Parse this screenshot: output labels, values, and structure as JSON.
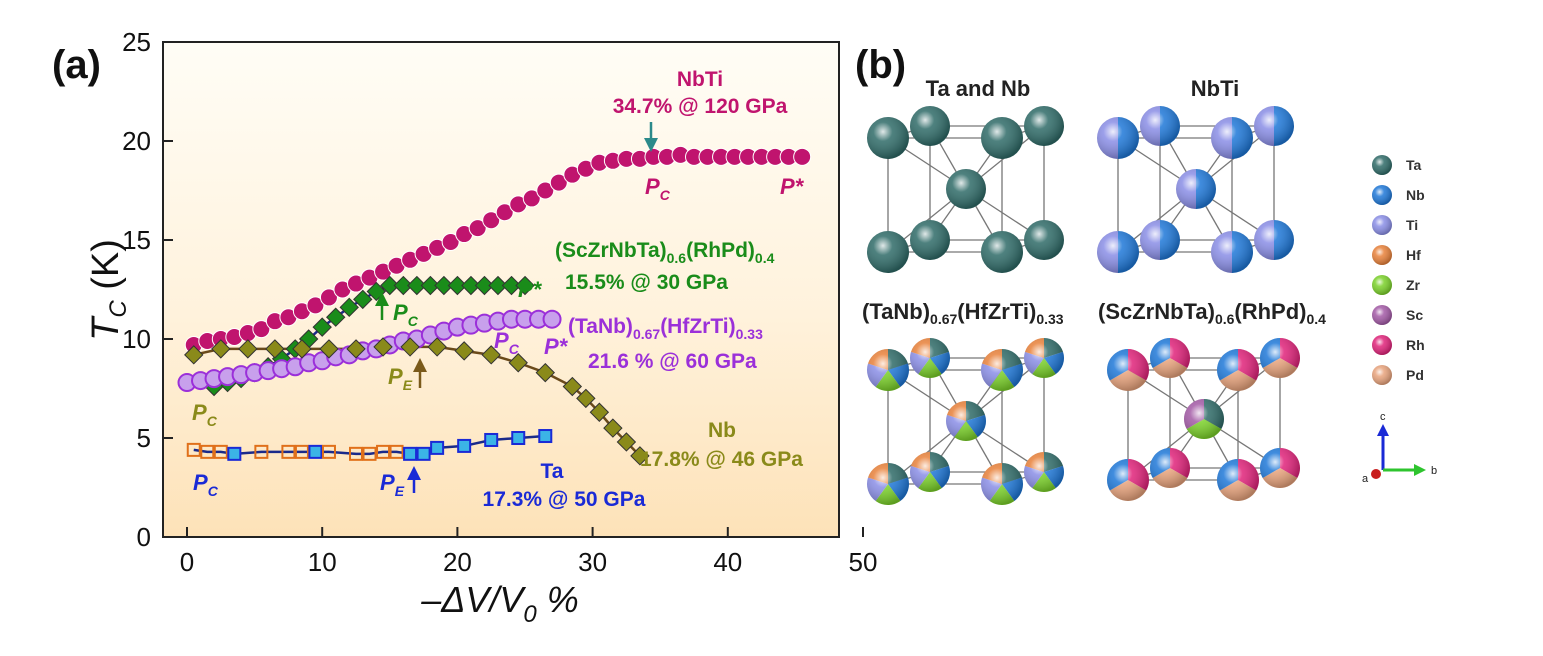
{
  "panel_a": {
    "label": "(a)",
    "chart_data": {
      "type": "scatter",
      "xlabel": "–ΔV/V0 %",
      "ylabel": "TC (K)",
      "xlim": [
        0,
        50
      ],
      "ylim": [
        0,
        25
      ],
      "xticks": [
        "0",
        "10",
        "20",
        "30",
        "40",
        "50"
      ],
      "yticks": [
        "0",
        "5",
        "10",
        "15",
        "20",
        "25"
      ],
      "grid": false,
      "series": [
        {
          "name": "NbTi",
          "note": "34.7% @ 120 GPa",
          "color": "#c0146e",
          "marker": "circle",
          "x": [
            0.5,
            1.5,
            2.5,
            3.5,
            4.5,
            5.5,
            6.5,
            7.5,
            8.5,
            9.5,
            10.5,
            11.5,
            12.5,
            13.5,
            14.5,
            15.5,
            16.5,
            17.5,
            18.5,
            19.5,
            20.5,
            21.5,
            22.5,
            23.5,
            24.5,
            25.5,
            26.5,
            27.5,
            28.5,
            29.5,
            30.5,
            31.5,
            32.5,
            33.5,
            34.5,
            35.5,
            36.5,
            37.5,
            38.5,
            39.5,
            40.5,
            41.5,
            42.5,
            43.5,
            44.5,
            45.5
          ],
          "y": [
            9.7,
            9.9,
            10.0,
            10.1,
            10.3,
            10.5,
            10.9,
            11.1,
            11.4,
            11.7,
            12.1,
            12.5,
            12.8,
            13.1,
            13.4,
            13.7,
            14.0,
            14.3,
            14.6,
            14.9,
            15.3,
            15.6,
            16.0,
            16.4,
            16.8,
            17.1,
            17.5,
            17.9,
            18.3,
            18.6,
            18.9,
            19.0,
            19.1,
            19.1,
            19.2,
            19.2,
            19.3,
            19.2,
            19.2,
            19.2,
            19.2,
            19.2,
            19.2,
            19.2,
            19.2,
            19.2
          ]
        },
        {
          "name": "(ScZrNbTa)0.6(RhPd)0.4",
          "note": "15.5% @ 30 GPa",
          "color": "#1a8c1a",
          "marker": "diamond",
          "x": [
            2,
            3,
            4,
            5,
            6,
            7,
            8,
            9,
            10,
            11,
            12,
            13,
            14,
            15,
            16,
            17,
            18,
            19,
            20,
            21,
            22,
            23,
            24,
            25
          ],
          "y": [
            7.6,
            7.8,
            8.0,
            8.3,
            8.6,
            9.0,
            9.5,
            10.0,
            10.6,
            11.1,
            11.6,
            12.0,
            12.4,
            12.7,
            12.7,
            12.7,
            12.7,
            12.7,
            12.7,
            12.7,
            12.7,
            12.7,
            12.7,
            12.7
          ]
        },
        {
          "name": "(TaNb)0.67(HfZrTi)0.33",
          "note": "21.6 % @ 60 GPa",
          "color": "#9b30d9",
          "marker": "circle",
          "x": [
            0,
            1,
            2,
            3,
            4,
            5,
            6,
            7,
            8,
            9,
            10,
            11,
            12,
            13,
            14,
            15,
            16,
            17,
            18,
            19,
            20,
            21,
            22,
            23,
            24,
            25,
            26,
            27
          ],
          "y": [
            7.8,
            7.9,
            8.0,
            8.1,
            8.2,
            8.3,
            8.4,
            8.5,
            8.6,
            8.8,
            8.9,
            9.1,
            9.2,
            9.4,
            9.5,
            9.7,
            9.9,
            10.0,
            10.2,
            10.4,
            10.6,
            10.7,
            10.8,
            10.9,
            11.0,
            11.0,
            11.0,
            11.0
          ]
        },
        {
          "name": "Nb",
          "note": "17.8% @ 46 GPa",
          "color": "#8a8a1a",
          "marker": "diamond",
          "x": [
            0.5,
            2.5,
            4.5,
            6.5,
            8.5,
            10.5,
            12.5,
            14.5,
            16.5,
            18.5,
            20.5,
            22.5,
            24.5,
            26.5,
            28.5,
            29.5,
            30.5,
            31.5,
            32.5,
            33.5
          ],
          "y": [
            9.2,
            9.5,
            9.5,
            9.5,
            9.5,
            9.5,
            9.5,
            9.6,
            9.6,
            9.6,
            9.4,
            9.2,
            8.8,
            8.3,
            7.6,
            7.0,
            6.3,
            5.5,
            4.8,
            4.1
          ]
        },
        {
          "name": "Ta",
          "note": "17.3% @ 50 GPa",
          "color": "#1a2ad6",
          "marker": "square",
          "x": [
            0.5,
            1.5,
            2.5,
            3.5,
            5.5,
            7.5,
            8.5,
            9.5,
            10.5,
            12.5,
            13.5,
            14.5,
            15.5,
            16.5,
            17.5,
            18.5,
            20.5,
            22.5,
            24.5,
            26.5
          ],
          "y": [
            4.4,
            4.3,
            4.3,
            4.2,
            4.3,
            4.3,
            4.3,
            4.3,
            4.3,
            4.2,
            4.2,
            4.3,
            4.3,
            4.2,
            4.2,
            4.5,
            4.6,
            4.9,
            5.0,
            5.1
          ]
        }
      ],
      "annotations": {
        "nbti_pc": "P",
        "nbti_pc_sub": "C",
        "nbti_pstar": "P*",
        "sc_pc": "P",
        "sc_pc_sub": "C",
        "sc_pstar": "P*",
        "tanb_pc": "P",
        "tanb_pc_sub": "C",
        "tanb_pstar": "P*",
        "nb_pe": "P",
        "nb_pe_sub": "E",
        "nb_pc": "P",
        "nb_pc_sub": "C",
        "ta_pc": "P",
        "ta_pc_sub": "C",
        "ta_pe": "P",
        "ta_pe_sub": "E"
      },
      "label_main": {
        "nbti": "NbTi",
        "sc_a": "(ScZrNbTa)",
        "sc_s1": "0.6",
        "sc_b": "(RhPd)",
        "sc_s2": "0.4",
        "tanb_a": "(TaNb)",
        "tanb_s1": "0.67",
        "tanb_b": "(HfZrTi)",
        "tanb_s2": "0.33",
        "nb": "Nb",
        "ta": "Ta"
      },
      "axis_text": {
        "xl_a": "–ΔV/V",
        "xl_sub": "0",
        "xl_b": " %",
        "yl_a": "T",
        "yl_sub": "C",
        "yl_b": " (K)"
      }
    }
  },
  "panel_b": {
    "label": "(b)",
    "titles": {
      "tanb": "Ta and Nb",
      "nbti": "NbTi",
      "hea1_a": "(TaNb)",
      "hea1_s1": "0.67",
      "hea1_b": "(HfZrTi)",
      "hea1_s2": "0.33",
      "hea2_a": "(ScZrNbTa)",
      "hea2_s1": "0.6",
      "hea2_b": "(RhPd)",
      "hea2_s2": "0.4"
    },
    "legend": [
      {
        "label": "Ta",
        "color": "#2f6b68"
      },
      {
        "label": "Nb",
        "color": "#1f78d8"
      },
      {
        "label": "Ti",
        "color": "#8a8ee6"
      },
      {
        "label": "Hf",
        "color": "#e8813a"
      },
      {
        "label": "Zr",
        "color": "#7bd12a"
      },
      {
        "label": "Sc",
        "color": "#a35aa6"
      },
      {
        "label": "Rh",
        "color": "#e0237a"
      },
      {
        "label": "Pd",
        "color": "#e8a37c"
      }
    ],
    "axes_labels": {
      "c": "c",
      "a": "a",
      "b": "b"
    }
  }
}
